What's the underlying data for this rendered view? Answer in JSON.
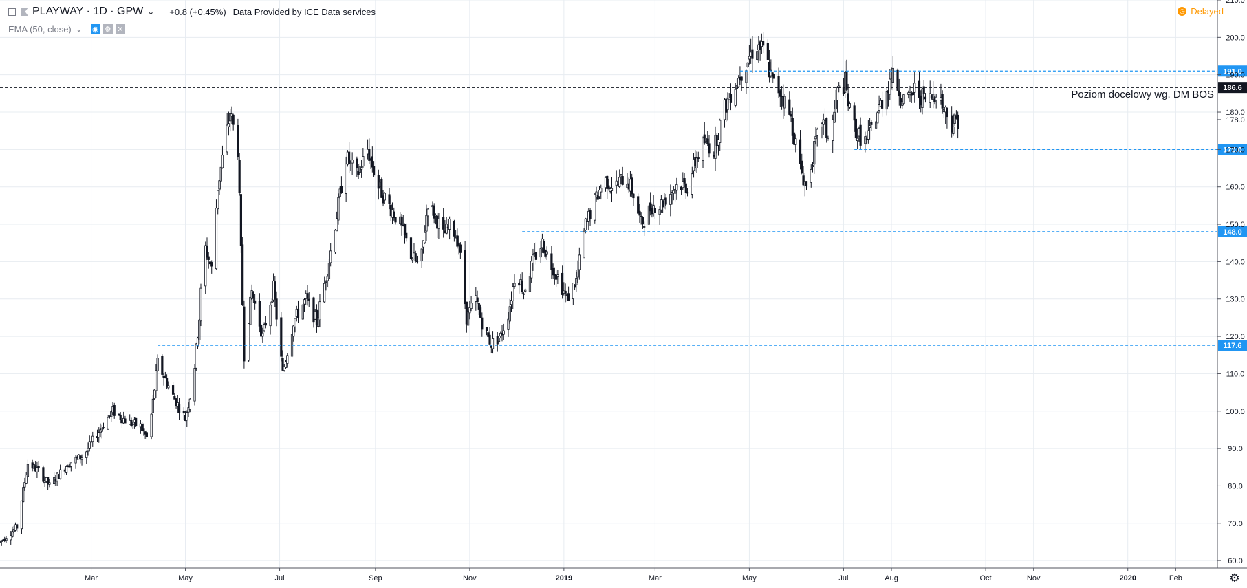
{
  "header": {
    "symbol": "PLAYWAY · 1D · GPW",
    "change": "+0.8 (+0.45%)",
    "data_source": "Data Provided by ICE Data services",
    "indicator": "EMA (50, close)",
    "status": "Delayed"
  },
  "chart_data": {
    "type": "candlestick",
    "title": "",
    "xlabel": "",
    "ylabel": "",
    "ylim": [
      58,
      210
    ],
    "grid": true,
    "y_ticks": [
      60,
      70,
      80,
      90,
      100,
      110,
      120,
      130,
      140,
      150,
      160,
      170,
      180,
      190,
      200,
      210
    ],
    "x_range": [
      "2018-01-01",
      "2020-02-28"
    ],
    "x_ticks": [
      {
        "label": "Mar",
        "date": "2018-03-01",
        "bold": false
      },
      {
        "label": "May",
        "date": "2018-05-01",
        "bold": false
      },
      {
        "label": "Jul",
        "date": "2018-07-01",
        "bold": false
      },
      {
        "label": "Sep",
        "date": "2018-09-01",
        "bold": false
      },
      {
        "label": "Nov",
        "date": "2018-11-01",
        "bold": false
      },
      {
        "label": "2019",
        "date": "2019-01-01",
        "bold": true
      },
      {
        "label": "Mar",
        "date": "2019-03-01",
        "bold": false
      },
      {
        "label": "May",
        "date": "2019-05-01",
        "bold": false
      },
      {
        "label": "Jul",
        "date": "2019-07-01",
        "bold": false
      },
      {
        "label": "Aug",
        "date": "2019-08-01",
        "bold": false
      },
      {
        "label": "Oct",
        "date": "2019-10-01",
        "bold": false
      },
      {
        "label": "Nov",
        "date": "2019-11-01",
        "bold": false
      },
      {
        "label": "2020",
        "date": "2020-01-01",
        "bold": true
      },
      {
        "label": "Feb",
        "date": "2020-02-01",
        "bold": false
      }
    ],
    "price_path": [
      [
        "2018-01-01",
        65
      ],
      [
        "2018-01-12",
        69
      ],
      [
        "2018-01-19",
        86
      ],
      [
        "2018-01-26",
        84
      ],
      [
        "2018-02-02",
        80
      ],
      [
        "2018-02-14",
        86
      ],
      [
        "2018-02-24",
        88
      ],
      [
        "2018-03-05",
        94
      ],
      [
        "2018-03-15",
        100
      ],
      [
        "2018-03-25",
        97
      ],
      [
        "2018-04-02",
        96
      ],
      [
        "2018-04-07",
        92
      ],
      [
        "2018-04-13",
        113
      ],
      [
        "2018-04-23",
        104
      ],
      [
        "2018-05-01",
        98
      ],
      [
        "2018-05-06",
        108
      ],
      [
        "2018-05-10",
        125
      ],
      [
        "2018-05-13",
        145
      ],
      [
        "2018-05-18",
        138
      ],
      [
        "2018-05-22",
        160
      ],
      [
        "2018-05-30",
        180
      ],
      [
        "2018-06-04",
        170
      ],
      [
        "2018-06-08",
        115
      ],
      [
        "2018-06-13",
        132
      ],
      [
        "2018-06-20",
        120
      ],
      [
        "2018-06-27",
        133
      ],
      [
        "2018-07-03",
        110
      ],
      [
        "2018-07-10",
        124
      ],
      [
        "2018-07-18",
        130
      ],
      [
        "2018-07-25",
        124
      ],
      [
        "2018-08-01",
        138
      ],
      [
        "2018-08-06",
        150
      ],
      [
        "2018-08-13",
        168
      ],
      [
        "2018-08-20",
        163
      ],
      [
        "2018-08-27",
        170
      ],
      [
        "2018-09-03",
        160
      ],
      [
        "2018-09-10",
        155
      ],
      [
        "2018-09-17",
        150
      ],
      [
        "2018-09-24",
        142
      ],
      [
        "2018-09-30",
        138
      ],
      [
        "2018-10-05",
        156
      ],
      [
        "2018-10-10",
        152
      ],
      [
        "2018-10-15",
        147
      ],
      [
        "2018-10-20",
        150
      ],
      [
        "2018-10-25",
        145
      ],
      [
        "2018-10-30",
        125
      ],
      [
        "2018-11-05",
        130
      ],
      [
        "2018-11-10",
        122
      ],
      [
        "2018-11-15",
        118
      ],
      [
        "2018-11-21",
        120
      ],
      [
        "2018-11-26",
        126
      ],
      [
        "2018-12-01",
        138
      ],
      [
        "2018-12-06",
        132
      ],
      [
        "2018-12-12",
        140
      ],
      [
        "2018-12-18",
        145
      ],
      [
        "2018-12-23",
        140
      ],
      [
        "2018-12-28",
        136
      ],
      [
        "2019-01-03",
        130
      ],
      [
        "2019-01-09",
        135
      ],
      [
        "2019-01-15",
        150
      ],
      [
        "2019-01-20",
        155
      ],
      [
        "2019-01-27",
        162
      ],
      [
        "2019-02-03",
        160
      ],
      [
        "2019-02-10",
        163
      ],
      [
        "2019-02-15",
        158
      ],
      [
        "2019-02-20",
        150
      ],
      [
        "2019-02-27",
        155
      ],
      [
        "2019-03-04",
        155
      ],
      [
        "2019-03-10",
        158
      ],
      [
        "2019-03-16",
        161
      ],
      [
        "2019-03-22",
        160
      ],
      [
        "2019-03-28",
        168
      ],
      [
        "2019-04-02",
        172
      ],
      [
        "2019-04-08",
        170
      ],
      [
        "2019-04-14",
        180
      ],
      [
        "2019-04-20",
        186
      ],
      [
        "2019-04-25",
        190
      ],
      [
        "2019-05-01",
        195
      ],
      [
        "2019-05-06",
        198
      ],
      [
        "2019-05-11",
        196
      ],
      [
        "2019-05-16",
        188
      ],
      [
        "2019-05-22",
        185
      ],
      [
        "2019-05-28",
        178
      ],
      [
        "2019-06-03",
        165
      ],
      [
        "2019-06-07",
        160
      ],
      [
        "2019-06-12",
        170
      ],
      [
        "2019-06-17",
        178
      ],
      [
        "2019-06-22",
        172
      ],
      [
        "2019-06-27",
        185
      ],
      [
        "2019-07-02",
        188
      ],
      [
        "2019-07-05",
        180
      ],
      [
        "2019-07-10",
        174
      ],
      [
        "2019-07-16",
        172
      ],
      [
        "2019-07-21",
        178
      ],
      [
        "2019-07-28",
        185
      ],
      [
        "2019-08-01",
        190
      ],
      [
        "2019-08-06",
        186
      ],
      [
        "2019-08-11",
        182
      ],
      [
        "2019-08-16",
        186
      ],
      [
        "2019-08-21",
        184
      ],
      [
        "2019-08-25",
        183
      ],
      [
        "2019-08-30",
        186
      ],
      [
        "2019-09-04",
        181
      ],
      [
        "2019-09-09",
        177
      ],
      [
        "2019-09-13",
        178
      ]
    ],
    "horizontal_lines": [
      {
        "price": 191.0,
        "from": "2019-04-25",
        "label": "191.0",
        "color": "#2196f3",
        "style": "dashed"
      },
      {
        "price": 186.6,
        "from": "2018-01-01",
        "label": "186.6",
        "color": "#131722",
        "style": "dashed",
        "annotation": "Poziom docelowy wg. DM BOS"
      },
      {
        "price": 170.0,
        "from": "2019-07-08",
        "label": "170.0",
        "color": "#2196f3",
        "style": "dashed"
      },
      {
        "price": 148.0,
        "from": "2018-12-05",
        "label": "148.0",
        "color": "#2196f3",
        "style": "dashed"
      },
      {
        "price": 117.6,
        "from": "2018-04-13",
        "label": "117.6",
        "color": "#2196f3",
        "style": "dashed"
      }
    ],
    "last_price": {
      "value": 178.0,
      "label": "178.0"
    }
  },
  "colors": {
    "grid": "#e7ecf1",
    "axis": "#50535e",
    "candle": "#131722",
    "blue_line": "#2196f3",
    "text": "#131722",
    "delayed": "#ff9800"
  }
}
